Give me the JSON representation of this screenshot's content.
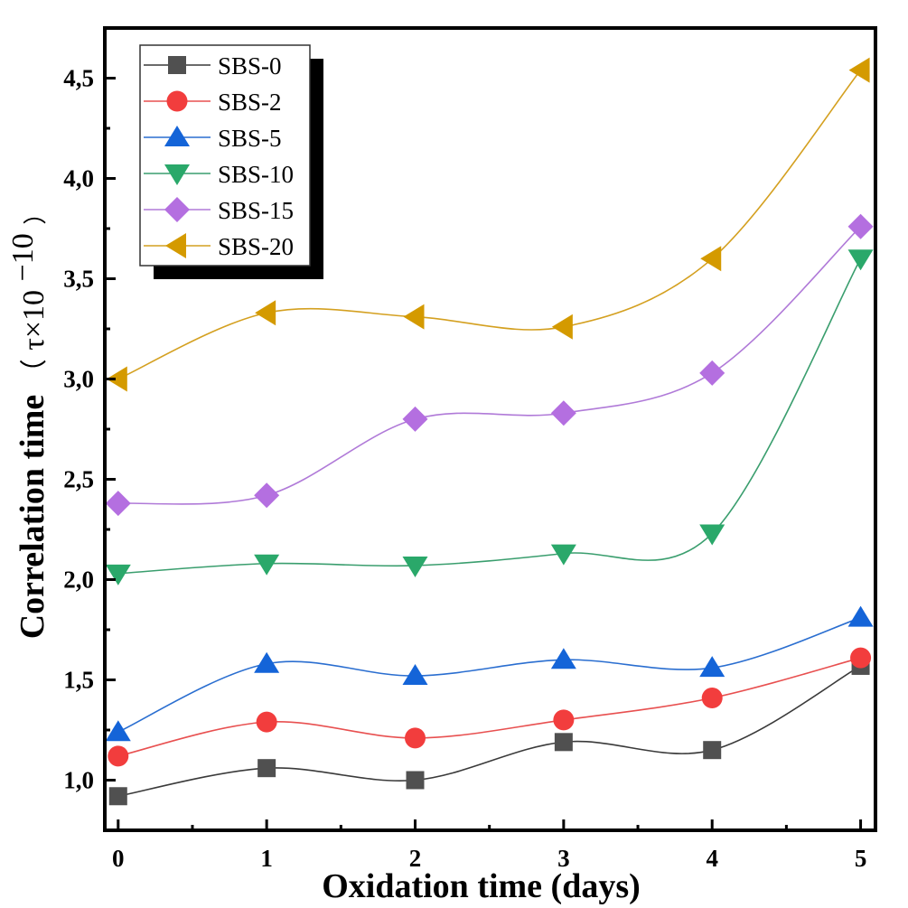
{
  "chart_data": {
    "type": "line",
    "title": "",
    "xlabel": "Oxidation time (days)",
    "ylabel": {
      "main": "Correlation time",
      "open_paren": "（",
      "unit_base": "τ×10",
      "unit_exponent": "−10",
      "close_paren": "）"
    },
    "x": [
      0,
      1,
      2,
      3,
      4,
      5
    ],
    "xlim": [
      -0.09,
      5.1
    ],
    "ylim": [
      0.75,
      4.75
    ],
    "x_ticks": [
      0,
      1,
      2,
      3,
      4,
      5
    ],
    "x_tick_labels": [
      "0",
      "1",
      "2",
      "3",
      "4",
      "5"
    ],
    "x_minor_ticks": [
      0.5,
      1.5,
      2.5,
      3.5,
      4.5
    ],
    "y_ticks": [
      1.0,
      1.5,
      2.0,
      2.5,
      3.0,
      3.5,
      4.0,
      4.5
    ],
    "y_tick_labels": [
      "1,0",
      "1,5",
      "2,0",
      "2,5",
      "3,0",
      "3,5",
      "4,0",
      "4,5"
    ],
    "y_minor_ticks": [
      1.25,
      1.75,
      2.25,
      2.75,
      3.25,
      3.75,
      4.25
    ],
    "grid": false,
    "smoothed_lines": true,
    "legend_position": "top-left",
    "series": [
      {
        "name": "SBS-0",
        "marker": "square",
        "color": "#505050",
        "line_color": "#3a3a3a",
        "values": [
          0.92,
          1.06,
          1.0,
          1.19,
          1.15,
          1.57
        ]
      },
      {
        "name": "SBS-2",
        "marker": "circle",
        "color": "#f23d3d",
        "line_color": "#e85050",
        "values": [
          1.12,
          1.29,
          1.21,
          1.3,
          1.41,
          1.61
        ]
      },
      {
        "name": "SBS-5",
        "marker": "triangle-up",
        "color": "#1464d8",
        "line_color": "#2a6ed0",
        "values": [
          1.24,
          1.58,
          1.52,
          1.6,
          1.56,
          1.81
        ]
      },
      {
        "name": "SBS-10",
        "marker": "triangle-down",
        "color": "#2aa86a",
        "line_color": "#3a9e6e",
        "values": [
          2.03,
          2.08,
          2.07,
          2.13,
          2.23,
          3.6
        ]
      },
      {
        "name": "SBS-15",
        "marker": "diamond",
        "color": "#b46fe0",
        "line_color": "#b07ad8",
        "values": [
          2.38,
          2.42,
          2.8,
          2.83,
          3.03,
          3.76
        ]
      },
      {
        "name": "SBS-20",
        "marker": "triangle-left",
        "color": "#d49a00",
        "line_color": "#d4a020",
        "values": [
          3.0,
          3.33,
          3.31,
          3.26,
          3.6,
          4.54
        ]
      }
    ]
  }
}
